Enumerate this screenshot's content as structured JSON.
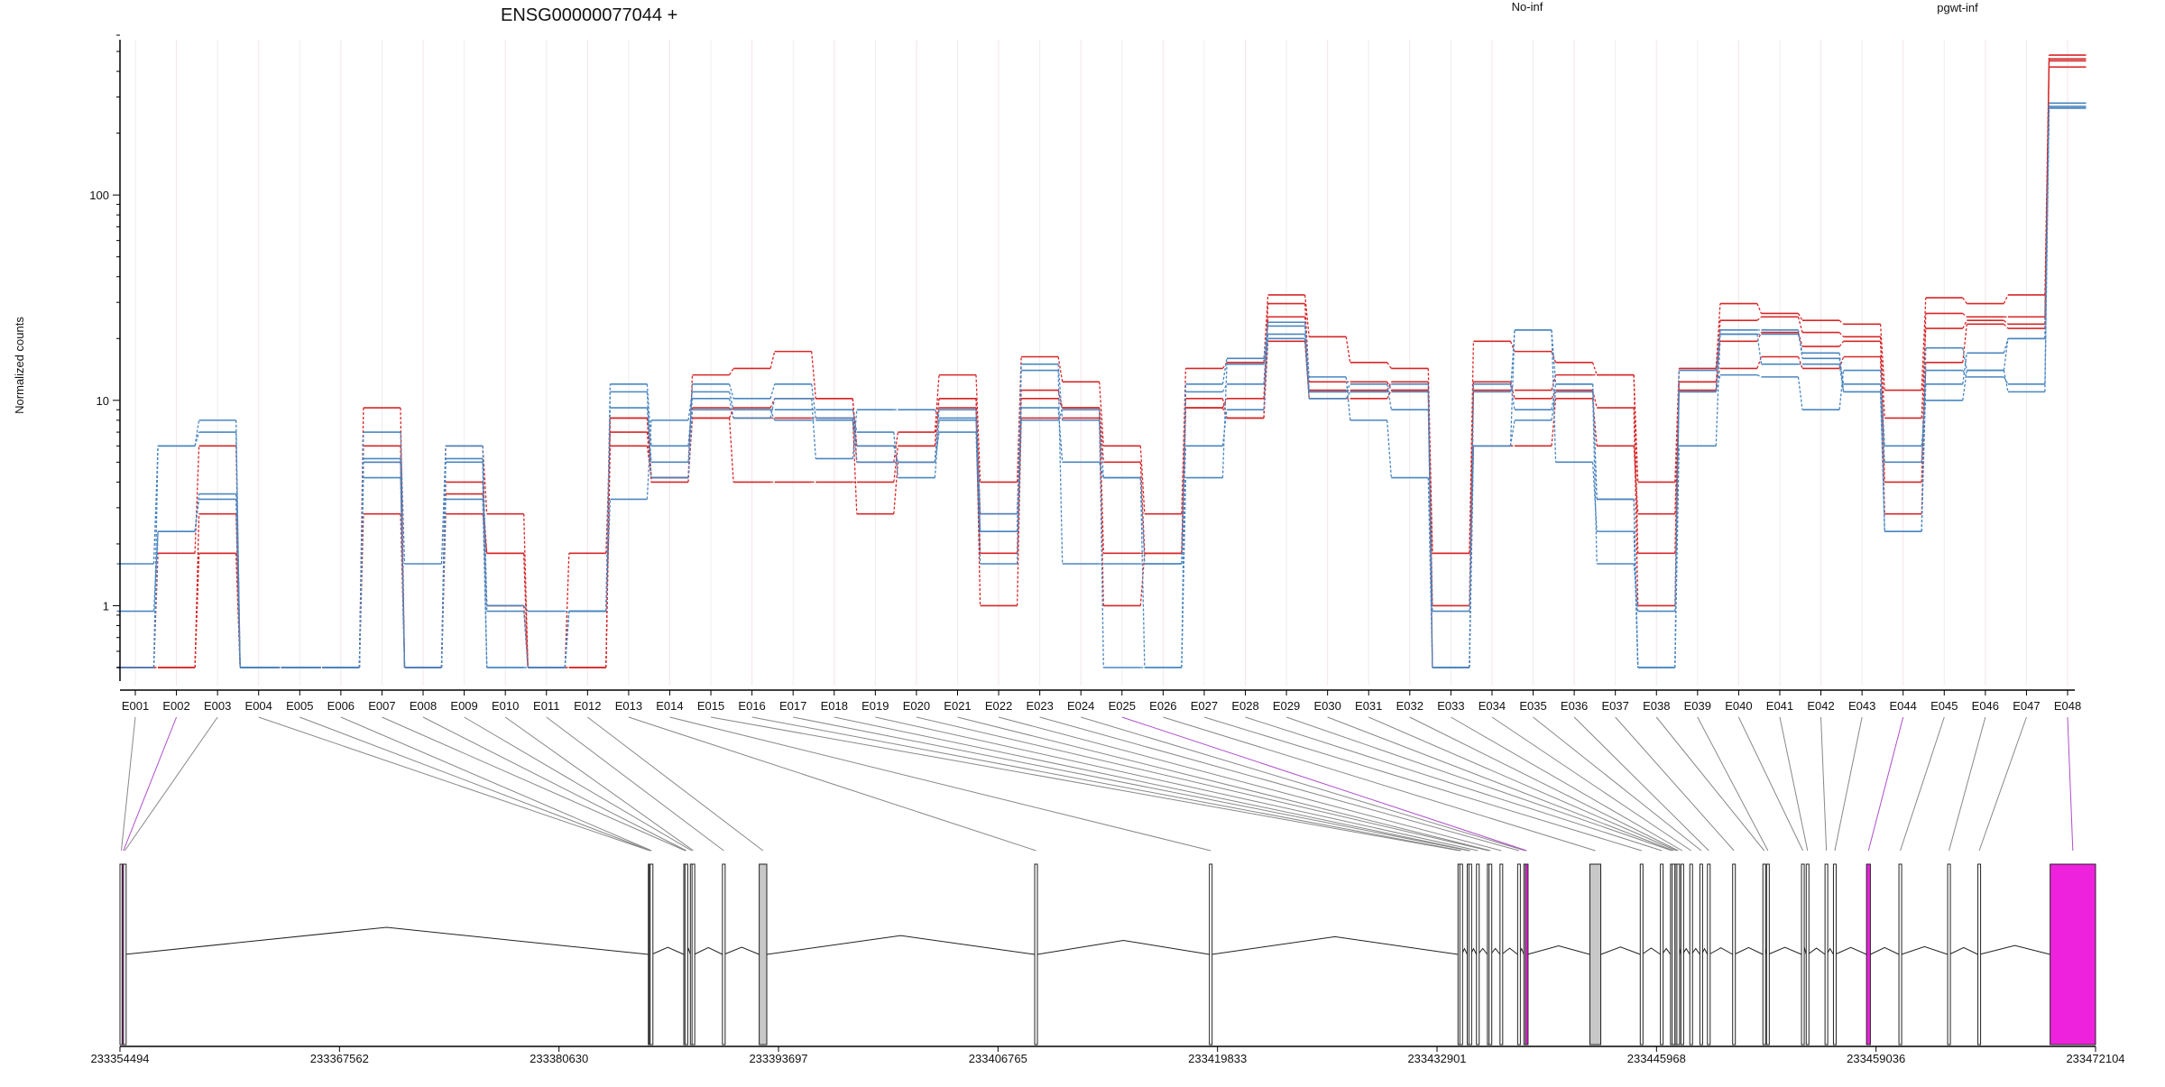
{
  "chart_data": {
    "type": "line",
    "title": "ENSG00000077044 +",
    "ylabel": "Normalized counts",
    "xlabel": "",
    "yscale": "log",
    "ylim": [
      0.5,
      600
    ],
    "yticks": [
      1,
      10,
      100
    ],
    "ytick_labels": [
      "1",
      "10",
      "100"
    ],
    "legend": [
      {
        "label": "No-inf",
        "color": "#d62728"
      },
      {
        "label": "pgwt-inf",
        "color": "#4a86c0"
      }
    ],
    "categories": [
      "E001",
      "E002",
      "E003",
      "E004",
      "E005",
      "E006",
      "E007",
      "E008",
      "E009",
      "E010",
      "E011",
      "E012",
      "E013",
      "E014",
      "E015",
      "E016",
      "E017",
      "E018",
      "E019",
      "E020",
      "E021",
      "E022",
      "E023",
      "E024",
      "E025",
      "E026",
      "E027",
      "E028",
      "E029",
      "E030",
      "E031",
      "E032",
      "E033",
      "E034",
      "E035",
      "E036",
      "E037",
      "E038",
      "E039",
      "E040",
      "E041",
      "E042",
      "E043",
      "E044",
      "E045",
      "E046",
      "E047",
      "E048"
    ],
    "series": [
      {
        "group": "No-inf",
        "values": [
          0.5,
          1.8,
          6.0,
          0.5,
          0.5,
          0.5,
          9.2,
          0.5,
          6.0,
          2.8,
          0.5,
          1.8,
          7.0,
          4.2,
          13.3,
          14.3,
          17.3,
          10.2,
          5.0,
          7.0,
          13.3,
          4.0,
          16.3,
          12.3,
          6.0,
          2.8,
          14.3,
          15.3,
          32.6,
          20.4,
          15.3,
          14.3,
          1.8,
          19.4,
          17.3,
          15.3,
          13.3,
          4.0,
          14.3,
          29.6,
          26.5,
          24.5,
          23.5,
          11.2,
          31.6,
          29.6,
          32.6,
          480
        ]
      },
      {
        "group": "No-inf",
        "values": [
          0.5,
          0.5,
          2.8,
          0.5,
          0.5,
          0.5,
          5.0,
          0.5,
          4.0,
          1.0,
          0.5,
          0.5,
          8.2,
          4.0,
          9.2,
          8.2,
          8.2,
          8.2,
          2.8,
          5.0,
          9.2,
          1.0,
          8.2,
          8.2,
          1.0,
          1.8,
          9.2,
          8.2,
          19.4,
          10.2,
          10.2,
          11.2,
          1.0,
          12.3,
          10.2,
          11.2,
          9.2,
          1.0,
          12.3,
          14.3,
          16.3,
          14.3,
          16.3,
          2.8,
          15.3,
          23.5,
          22.4,
          420
        ]
      },
      {
        "group": "No-inf",
        "values": [
          0.5,
          0.5,
          1.8,
          0.5,
          0.5,
          0.5,
          2.8,
          0.5,
          2.8,
          1.8,
          0.5,
          0.5,
          6.0,
          4.2,
          8.2,
          4.0,
          4.0,
          4.0,
          4.0,
          6.0,
          10.2,
          2.8,
          11.2,
          9.2,
          5.0,
          1.8,
          9.2,
          10.2,
          25.5,
          11.2,
          11.2,
          12.3,
          0.5,
          6.0,
          6.0,
          10.2,
          6.0,
          2.8,
          11.2,
          24.5,
          25.5,
          21.4,
          20.4,
          4.0,
          26.5,
          25.5,
          25.5,
          450
        ]
      },
      {
        "group": "No-inf",
        "values": [
          0.5,
          0.5,
          1.8,
          0.5,
          0.5,
          0.5,
          6.0,
          0.5,
          3.5,
          1.8,
          0.5,
          0.5,
          8.2,
          4.2,
          8.2,
          9.2,
          10.2,
          10.2,
          6.0,
          6.0,
          10.2,
          1.8,
          10.2,
          9.2,
          1.8,
          1.8,
          10.2,
          8.2,
          29.6,
          12.3,
          12.3,
          11.2,
          1.8,
          11.2,
          11.2,
          13.3,
          13.3,
          1.8,
          12.3,
          19.4,
          21.4,
          18.3,
          19.4,
          8.2,
          22.4,
          24.5,
          23.5,
          460
        ]
      },
      {
        "group": "pgwt-inf",
        "values": [
          1.6,
          6.0,
          8.0,
          0.5,
          0.5,
          0.5,
          7.0,
          1.6,
          6.0,
          1.0,
          0.94,
          0.94,
          12.0,
          6.0,
          10.2,
          8.2,
          10.2,
          5.2,
          9.0,
          9.0,
          8.2,
          2.8,
          9.2,
          5.0,
          4.2,
          1.6,
          12.0,
          16.0,
          23.0,
          13.0,
          8.0,
          4.2,
          0.5,
          6.0,
          8.0,
          11.0,
          1.6,
          0.94,
          11.0,
          13.3,
          13.0,
          9.0,
          14.0,
          6.0,
          10.0,
          14.0,
          11.0,
          280
        ]
      },
      {
        "group": "pgwt-inf",
        "values": [
          0.94,
          2.3,
          3.5,
          0.5,
          0.5,
          0.5,
          4.2,
          0.5,
          3.3,
          0.5,
          0.5,
          0.94,
          9.2,
          5.0,
          12.0,
          10.2,
          12.0,
          8.2,
          6.0,
          5.0,
          9.0,
          2.3,
          15.0,
          8.0,
          4.2,
          0.5,
          4.2,
          15.0,
          21.0,
          11.0,
          12.0,
          9.0,
          0.94,
          6.0,
          22.0,
          5.0,
          2.3,
          0.5,
          6.0,
          21.0,
          15.0,
          15.0,
          11.0,
          2.3,
          12.0,
          17.0,
          20.0,
          265
        ]
      },
      {
        "group": "pgwt-inf",
        "values": [
          0.5,
          6.0,
          7.0,
          0.5,
          0.5,
          0.5,
          5.0,
          0.5,
          5.2,
          0.94,
          0.5,
          0.94,
          3.3,
          8.0,
          11.0,
          9.0,
          9.0,
          9.0,
          7.0,
          4.2,
          8.0,
          2.3,
          14.0,
          1.6,
          1.6,
          1.6,
          6.0,
          9.0,
          20.0,
          10.2,
          11.0,
          11.0,
          0.5,
          12.0,
          9.0,
          12.0,
          3.3,
          0.5,
          14.0,
          21.0,
          21.0,
          17.0,
          11.0,
          5.0,
          14.0,
          13.0,
          12.0,
          270
        ]
      },
      {
        "group": "pgwt-inf",
        "values": [
          0.5,
          2.3,
          3.3,
          0.5,
          0.5,
          0.5,
          5.2,
          0.5,
          5.0,
          0.5,
          0.5,
          0.94,
          11.0,
          4.2,
          9.0,
          9.0,
          8.0,
          8.0,
          5.0,
          5.0,
          7.0,
          1.6,
          8.0,
          9.0,
          0.5,
          0.5,
          11.0,
          12.0,
          24.0,
          11.0,
          11.0,
          12.0,
          0.5,
          11.0,
          22.0,
          12.0,
          3.3,
          0.5,
          11.0,
          22.0,
          22.0,
          16.0,
          12.0,
          2.3,
          18.0,
          14.0,
          20.0,
          265
        ]
      }
    ],
    "gene_model": {
      "start_coord": 233354494,
      "end_coord": 233472104,
      "axis_ticks": [
        "233354494",
        "233367562",
        "233380630",
        "233393697",
        "233406765",
        "233419833",
        "233432901",
        "233445968",
        "233459036",
        "233472104"
      ],
      "exons": [
        {
          "id": "E001",
          "start": 233354494,
          "end": 233354620,
          "highlight": false
        },
        {
          "id": "E002",
          "start": 233354620,
          "end": 233354700,
          "highlight": true
        },
        {
          "id": "E003",
          "start": 233354700,
          "end": 233354780,
          "highlight": false
        },
        {
          "id": "E004",
          "start": 233385950,
          "end": 233386000,
          "highlight": false
        },
        {
          "id": "E005",
          "start": 233386000,
          "end": 233386060,
          "highlight": false
        },
        {
          "id": "E006",
          "start": 233386060,
          "end": 233386150,
          "highlight": false
        },
        {
          "id": "E007",
          "start": 233388060,
          "end": 233388130,
          "highlight": false
        },
        {
          "id": "E008",
          "start": 233388130,
          "end": 233388220,
          "highlight": false
        },
        {
          "id": "E009",
          "start": 233388450,
          "end": 233388550,
          "highlight": false
        },
        {
          "id": "E010",
          "start": 233388550,
          "end": 233388680,
          "highlight": false
        },
        {
          "id": "E011",
          "start": 233390360,
          "end": 233390460,
          "highlight": false
        },
        {
          "id": "E012",
          "start": 233392550,
          "end": 233393000,
          "highlight": false
        },
        {
          "id": "E013",
          "start": 233408950,
          "end": 233409100,
          "highlight": false
        },
        {
          "id": "E014",
          "start": 233419350,
          "end": 233419500,
          "highlight": false
        },
        {
          "id": "E015",
          "start": 233434150,
          "end": 233434260,
          "highlight": false
        },
        {
          "id": "E016",
          "start": 233434260,
          "end": 233434370,
          "highlight": false
        },
        {
          "id": "E017",
          "start": 233434700,
          "end": 233434800,
          "highlight": false
        },
        {
          "id": "E018",
          "start": 233434800,
          "end": 233434900,
          "highlight": false
        },
        {
          "id": "E019",
          "start": 233435250,
          "end": 233435350,
          "highlight": false
        },
        {
          "id": "E020",
          "start": 233435900,
          "end": 233436000,
          "highlight": false
        },
        {
          "id": "E021",
          "start": 233436000,
          "end": 233436100,
          "highlight": false
        },
        {
          "id": "E022",
          "start": 233436650,
          "end": 233436750,
          "highlight": false
        },
        {
          "id": "E023",
          "start": 233437700,
          "end": 233437800,
          "highlight": false
        },
        {
          "id": "E024",
          "start": 233438070,
          "end": 233438160,
          "highlight": false
        },
        {
          "id": "E025",
          "start": 233438160,
          "end": 233438280,
          "highlight": true
        },
        {
          "id": "E026",
          "start": 233442000,
          "end": 233442650,
          "highlight": false
        },
        {
          "id": "E027",
          "start": 233445000,
          "end": 233445100,
          "highlight": false
        },
        {
          "id": "E028",
          "start": 233446200,
          "end": 233446300,
          "highlight": false
        },
        {
          "id": "E029",
          "start": 233446800,
          "end": 233446900,
          "highlight": false
        },
        {
          "id": "E030",
          "start": 233446900,
          "end": 233447000,
          "highlight": false
        },
        {
          "id": "E031",
          "start": 233447080,
          "end": 233447180,
          "highlight": false
        },
        {
          "id": "E032",
          "start": 233447180,
          "end": 233447280,
          "highlight": false
        },
        {
          "id": "E033",
          "start": 233447420,
          "end": 233447520,
          "highlight": false
        },
        {
          "id": "E034",
          "start": 233447950,
          "end": 233448050,
          "highlight": false
        },
        {
          "id": "E035",
          "start": 233448550,
          "end": 233448650,
          "highlight": false
        },
        {
          "id": "E036",
          "start": 233449000,
          "end": 233449100,
          "highlight": false
        },
        {
          "id": "E037",
          "start": 233450500,
          "end": 233450600,
          "highlight": false
        },
        {
          "id": "E038",
          "start": 233452300,
          "end": 233452400,
          "highlight": false
        },
        {
          "id": "E039",
          "start": 233452520,
          "end": 233452620,
          "highlight": false
        },
        {
          "id": "E040",
          "start": 233454600,
          "end": 233454700,
          "highlight": false
        },
        {
          "id": "E041",
          "start": 233454880,
          "end": 233454980,
          "highlight": false
        },
        {
          "id": "E042",
          "start": 233456000,
          "end": 233456100,
          "highlight": false
        },
        {
          "id": "E043",
          "start": 233456500,
          "end": 233456600,
          "highlight": false
        },
        {
          "id": "E044",
          "start": 233458470,
          "end": 233458700,
          "highlight": true
        },
        {
          "id": "E045",
          "start": 233460400,
          "end": 233460550,
          "highlight": false
        },
        {
          "id": "E046",
          "start": 233463300,
          "end": 233463400,
          "highlight": false
        },
        {
          "id": "E047",
          "start": 233465100,
          "end": 233465200,
          "highlight": false
        },
        {
          "id": "E048",
          "start": 233469400,
          "end": 233472104,
          "highlight": true
        }
      ],
      "exon_colors": {
        "normal": "#ffffff",
        "highlight": "#ee22dd",
        "shaded": "#c8c8c8"
      }
    }
  }
}
